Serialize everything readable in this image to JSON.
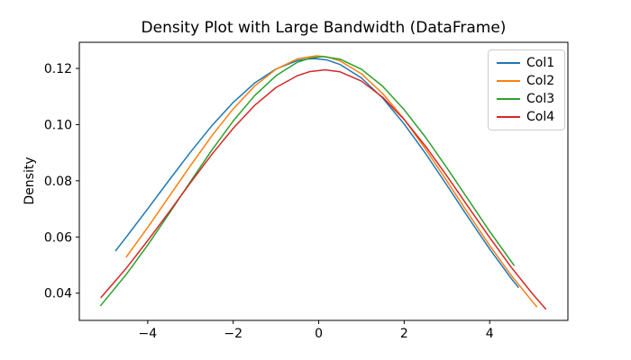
{
  "chart_data": {
    "type": "line",
    "title": "Density Plot with Large Bandwidth (DataFrame)",
    "xlabel": "",
    "ylabel": "Density",
    "xlim": [
      -5.6,
      5.83
    ],
    "ylim": [
      0.0303,
      0.1293
    ],
    "grid": false,
    "frame_color": "#000000",
    "x_ticks": {
      "values": [
        -4,
        -2,
        0,
        2,
        4
      ],
      "labels": [
        "−4",
        "−2",
        "0",
        "2",
        "4"
      ]
    },
    "y_ticks": {
      "values": [
        0.04,
        0.06,
        0.08,
        0.1,
        0.12
      ],
      "labels": [
        "0.04",
        "0.06",
        "0.08",
        "0.10",
        "0.12"
      ]
    },
    "legend": {
      "position": "upper right"
    },
    "series": [
      {
        "name": "Col1",
        "color": "#1f77b4",
        "x": [
          -4.75,
          -4.5,
          -4,
          -3.5,
          -3,
          -2.5,
          -2,
          -1.5,
          -1,
          -0.5,
          -0.3,
          -0.1,
          0.2,
          0.5,
          1,
          1.5,
          2,
          2.5,
          3,
          3.5,
          4,
          4.5,
          4.67
        ],
        "y": [
          0.0551,
          0.06,
          0.07,
          0.0802,
          0.0902,
          0.0996,
          0.1079,
          0.1148,
          0.1198,
          0.1228,
          0.1233,
          0.1235,
          0.123,
          0.1214,
          0.1166,
          0.1094,
          0.1002,
          0.0897,
          0.0784,
          0.0669,
          0.0557,
          0.0453,
          0.0421
        ]
      },
      {
        "name": "Col2",
        "color": "#ff7f0e",
        "x": [
          -4.5,
          -4,
          -3.5,
          -3,
          -2.5,
          -2,
          -1.5,
          -1,
          -0.5,
          -0.05,
          0.2,
          0.5,
          1,
          1.5,
          2,
          2.5,
          3,
          3.5,
          4,
          4.5,
          5,
          5.1
        ],
        "y": [
          0.0529,
          0.0634,
          0.0744,
          0.0854,
          0.096,
          0.1056,
          0.1137,
          0.1197,
          0.1234,
          0.1245,
          0.1241,
          0.1227,
          0.1181,
          0.111,
          0.1019,
          0.0913,
          0.0799,
          0.0683,
          0.057,
          0.0464,
          0.037,
          0.0352
        ]
      },
      {
        "name": "Col3",
        "color": "#2ca02c",
        "x": [
          -5.1,
          -4.5,
          -4,
          -3.5,
          -3,
          -2.5,
          -2,
          -1.5,
          -1,
          -0.5,
          -0.2,
          0.1,
          0.5,
          1,
          1.5,
          2,
          2.5,
          3,
          3.5,
          4,
          4.57
        ],
        "y": [
          0.0356,
          0.0467,
          0.0571,
          0.0683,
          0.0797,
          0.0909,
          0.1013,
          0.1103,
          0.1174,
          0.1222,
          0.1237,
          0.1242,
          0.1233,
          0.1197,
          0.1136,
          0.1053,
          0.0955,
          0.0846,
          0.0733,
          0.062,
          0.0499
        ]
      },
      {
        "name": "Col4",
        "color": "#d62728",
        "x": [
          -5.09,
          -4.5,
          -4,
          -3.5,
          -3,
          -2.5,
          -2,
          -1.5,
          -1,
          -0.5,
          -0.2,
          0.15,
          0.5,
          1,
          1.5,
          2,
          2.5,
          3,
          3.5,
          4,
          4.5,
          5,
          5.31
        ],
        "y": [
          0.0385,
          0.0489,
          0.0587,
          0.0689,
          0.0793,
          0.0894,
          0.0987,
          0.1068,
          0.1132,
          0.1174,
          0.1189,
          0.1195,
          0.1188,
          0.1155,
          0.1097,
          0.1018,
          0.0923,
          0.0817,
          0.0707,
          0.0598,
          0.0493,
          0.0398,
          0.0344
        ]
      }
    ]
  }
}
